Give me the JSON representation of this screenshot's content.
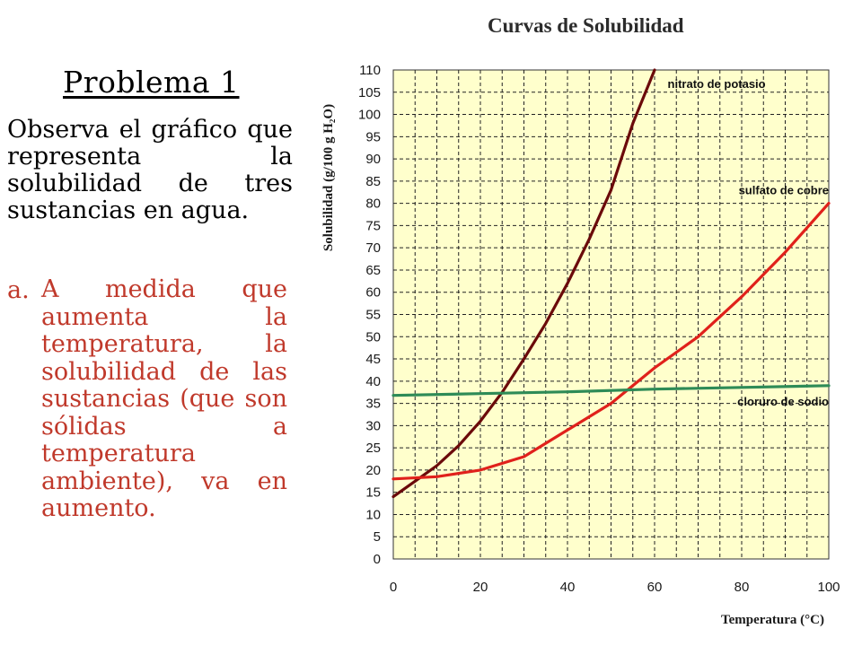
{
  "left_panel": {
    "title": "Problema 1",
    "intro": "Observa el gráfico que representa la solubilidad de tres sustancias en agua.",
    "item_marker": "a.",
    "item_text": "A medida que aumenta la temperatura, la solubilidad de las sustancias (que son sólidas a temperatura ambiente), va en aumento."
  },
  "colors": {
    "plot_background": "#ffffcc",
    "grid": "#222222",
    "item_text": "#c0392b",
    "nitrato_de_potasio": "#6b0a0a",
    "sulfato_de_cobre": "#e0211b",
    "cloruro_de_sodio": "#2e8b57"
  },
  "chart_data": {
    "type": "line",
    "title": "Curvas de Solubilidad",
    "xlabel": "Temperatura (°C)",
    "ylabel": "Solubilidad (g/100 g H₂O)",
    "xlim": [
      0,
      100
    ],
    "ylim": [
      0,
      110
    ],
    "x_ticks": [
      0,
      20,
      40,
      60,
      80,
      100
    ],
    "y_ticks": [
      0,
      5,
      10,
      15,
      20,
      25,
      30,
      35,
      40,
      45,
      50,
      55,
      60,
      65,
      70,
      75,
      80,
      85,
      90,
      95,
      100,
      105,
      110
    ],
    "grid": true,
    "series": [
      {
        "name": "nitrato de potasio",
        "color": "#6b0a0a",
        "x": [
          0,
          5,
          10,
          15,
          20,
          25,
          30,
          35,
          40,
          45,
          50,
          55,
          60
        ],
        "y": [
          14,
          17.5,
          21,
          25.5,
          31,
          37.5,
          45,
          53,
          62,
          72,
          83,
          98,
          110
        ]
      },
      {
        "name": "sulfato de cobre",
        "color": "#e0211b",
        "x": [
          0,
          10,
          20,
          30,
          40,
          50,
          60,
          70,
          80,
          90,
          100
        ],
        "y": [
          18,
          18.5,
          20,
          23,
          29,
          35,
          43,
          50,
          59,
          69,
          80
        ]
      },
      {
        "name": "cloruro de sodio",
        "color": "#2e8b57",
        "x": [
          0,
          20,
          40,
          60,
          80,
          100
        ],
        "y": [
          36.8,
          37.2,
          37.6,
          38.2,
          38.6,
          39
        ]
      }
    ]
  }
}
